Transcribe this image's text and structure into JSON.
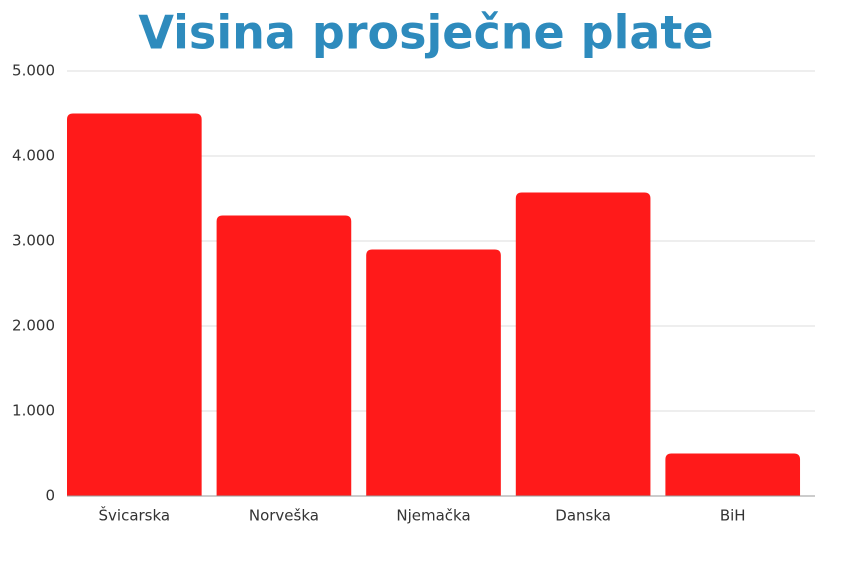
{
  "chart_data": {
    "type": "bar",
    "title": "Visina prosječne plate",
    "categories": [
      "Švicarska",
      "Norveška",
      "Njemačka",
      "Danska",
      "BiH"
    ],
    "values": [
      4500,
      3300,
      2900,
      3570,
      500
    ],
    "color": "#ff1a1a",
    "ylim": [
      0,
      5000
    ],
    "yticks": [
      0,
      {
        "value": 1000,
        "label": "1.000"
      },
      {
        "value": 2000,
        "label": "2.000"
      },
      {
        "value": 3000,
        "label": "3.000"
      },
      {
        "value": 4000,
        "label": "4.000"
      },
      {
        "value": 5000,
        "label": "5.000"
      }
    ],
    "grid": true
  }
}
